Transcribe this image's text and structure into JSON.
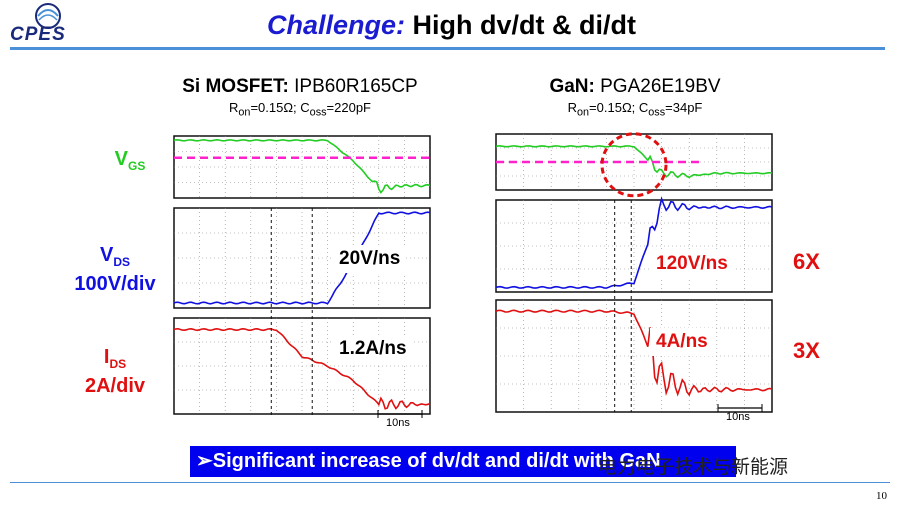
{
  "slide": {
    "logo_text": "CPES",
    "title_highlight": "Challenge:",
    "title_rest": "High dv/dt & di/dt",
    "banner": "➢Significant increase of dv/dt and di/dt with GaN",
    "watermark": "电力电子技术与新能源",
    "page_number": "10"
  },
  "labels": {
    "vgs_main": "V",
    "vgs_sub": "GS",
    "vds_main": "V",
    "vds_sub": "DS",
    "vds_scale": "100V/div",
    "ids_main": "I",
    "ids_sub": "DS",
    "ids_scale": "2A/div"
  },
  "colors": {
    "vgs": "#22cc22",
    "vds": "#1010e0",
    "ids": "#e01010",
    "threshold": "#ff22cc",
    "highlight_circle": "#e01010",
    "banner_bg": "#0000ee"
  },
  "chart_data": [
    {
      "type": "line",
      "device": "Si MOSFET",
      "device_bold": "Si MOSFET:",
      "part": "IPB60R165CP",
      "params_text": {
        "ron_label": "R",
        "ron_sub": "on",
        "ron_val": "=0.15Ω; C",
        "coss_sub": "oss",
        "coss_val": "=220pF"
      },
      "time_scale": "10ns",
      "dvdt_label": "20V/ns",
      "didt_label": "1.2A/ns",
      "x": [
        0,
        10,
        20,
        30,
        40,
        50,
        60,
        70,
        80,
        90,
        100
      ],
      "series": [
        {
          "signal": "VGS",
          "values": [
            0.93,
            0.93,
            0.93,
            0.93,
            0.93,
            0.93,
            0.93,
            0.6,
            0.15,
            0.2,
            0.2
          ]
        },
        {
          "signal": "VDS",
          "values": [
            0.05,
            0.05,
            0.05,
            0.05,
            0.05,
            0.05,
            0.05,
            0.45,
            0.95,
            0.95,
            0.95
          ]
        },
        {
          "signal": "IDS",
          "values": [
            0.88,
            0.88,
            0.88,
            0.88,
            0.88,
            0.6,
            0.5,
            0.35,
            0.1,
            0.1,
            0.1
          ]
        }
      ]
    },
    {
      "type": "line",
      "device": "GaN",
      "device_bold": "GaN:",
      "part": "PGA26E19BV",
      "params_text": {
        "ron_label": "R",
        "ron_sub": "on",
        "ron_val": "=0.15Ω; C",
        "coss_sub": "oss",
        "coss_val": "=34pF"
      },
      "time_scale": "10ns",
      "dvdt_label": "120V/ns",
      "didt_label": "4A/ns",
      "multiplier_dvdt": "6X",
      "multiplier_didt": "3X",
      "x": [
        0,
        10,
        20,
        30,
        40,
        50,
        60,
        70,
        80,
        90,
        100
      ],
      "series": [
        {
          "signal": "VGS",
          "values": [
            0.78,
            0.78,
            0.78,
            0.78,
            0.78,
            0.78,
            0.3,
            0.25,
            0.3,
            0.3,
            0.3
          ]
        },
        {
          "signal": "VDS",
          "values": [
            0.05,
            0.05,
            0.05,
            0.05,
            0.05,
            0.1,
            0.95,
            0.92,
            0.92,
            0.92,
            0.92
          ]
        },
        {
          "signal": "IDS",
          "values": [
            0.9,
            0.9,
            0.9,
            0.9,
            0.9,
            0.88,
            0.3,
            0.2,
            0.2,
            0.2,
            0.2
          ]
        }
      ]
    }
  ]
}
